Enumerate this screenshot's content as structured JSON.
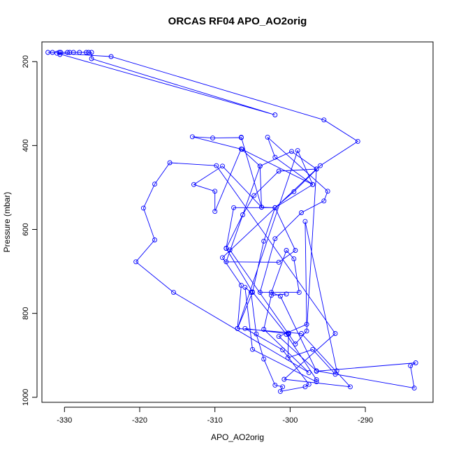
{
  "chart_data": {
    "type": "line",
    "title": "ORCAS RF04 APO_AO2orig",
    "xlabel": "APO_AO2orig",
    "ylabel": "Pressure (mbar)",
    "xlim": [
      -333,
      -281
    ],
    "ylim": [
      1012,
      153
    ],
    "x_ticks": [
      -330,
      -320,
      -310,
      -300,
      -290
    ],
    "y_ticks": [
      200,
      400,
      600,
      800,
      1000
    ],
    "grid": false,
    "marker": "open-circle",
    "colors": {
      "series": "#0000ff",
      "axis": "#000000",
      "background": "#ffffff"
    },
    "series": [
      {
        "points": [
          [
            -332.2,
            178
          ],
          [
            -331.6,
            178
          ],
          [
            -330.7,
            178
          ],
          [
            -330.6,
            183
          ],
          [
            -330.5,
            178
          ],
          [
            -329.6,
            178
          ],
          [
            -329.3,
            178
          ],
          [
            -328.8,
            178
          ],
          [
            -328.0,
            178
          ],
          [
            -327.1,
            178
          ],
          [
            -326.8,
            178
          ],
          [
            -326.4,
            178
          ],
          [
            -326.4,
            193
          ],
          [
            -302.0,
            327
          ],
          [
            -331.0,
            180
          ],
          [
            -323.8,
            188
          ],
          [
            -295.5,
            339
          ],
          [
            -291.0,
            390
          ],
          [
            -296.0,
            448
          ],
          [
            -299.5,
            510
          ],
          [
            -302.0,
            548
          ],
          [
            -303.5,
            628
          ],
          [
            -305.0,
            750
          ],
          [
            -307.0,
            836
          ],
          [
            -306.5,
            733
          ],
          [
            -309.0,
            667
          ],
          [
            -296.5,
            456
          ],
          [
            -301.5,
            461
          ],
          [
            -304.8,
            519
          ],
          [
            -306.3,
            565
          ],
          [
            -308.5,
            645
          ],
          [
            -308.0,
            649
          ],
          [
            -300.3,
            847
          ],
          [
            -299.3,
            873
          ],
          [
            -297.8,
            842
          ],
          [
            -296.5,
            456
          ],
          [
            -299.8,
            414
          ],
          [
            -304.0,
            449
          ],
          [
            -308.5,
            677
          ],
          [
            -301.5,
            678
          ],
          [
            -299.3,
            650
          ],
          [
            -302.0,
            548
          ],
          [
            -303.8,
            547
          ],
          [
            -309.0,
            449
          ],
          [
            -312.8,
            493
          ],
          [
            -310.0,
            509
          ],
          [
            -310.0,
            557
          ],
          [
            -306.5,
            408
          ],
          [
            -304.0,
            449
          ],
          [
            -303.8,
            547
          ],
          [
            -306.5,
            380
          ],
          [
            -306.5,
            381
          ],
          [
            -310.3,
            382
          ],
          [
            -313.0,
            379
          ],
          [
            -306.4,
            409
          ],
          [
            -297.0,
            493
          ],
          [
            -302.0,
            428
          ],
          [
            -303.0,
            380
          ],
          [
            -295.0,
            509
          ],
          [
            -295.5,
            532
          ],
          [
            -298.5,
            560
          ],
          [
            -302.0,
            622
          ],
          [
            -304.0,
            750
          ],
          [
            -298.8,
            750
          ],
          [
            -299.5,
            670
          ],
          [
            -300.5,
            650
          ],
          [
            -302.5,
            750
          ],
          [
            -301.3,
            759
          ],
          [
            -296.5,
            938
          ],
          [
            -283.3,
            918
          ],
          [
            -284.0,
            925
          ],
          [
            -283.5,
            978
          ],
          [
            -296.5,
            937
          ],
          [
            -301.5,
            855
          ],
          [
            -297.8,
            826
          ],
          [
            -298.0,
            581
          ],
          [
            -293.8,
            937
          ],
          [
            -294.0,
            945
          ],
          [
            -297.0,
            886
          ],
          [
            -300.3,
            906
          ],
          [
            -300.2,
            847
          ],
          [
            -300.2,
            849
          ],
          [
            -306.0,
            836
          ],
          [
            -301.0,
            887
          ],
          [
            -297.5,
            969
          ],
          [
            -298.0,
            975
          ],
          [
            -301.3,
            986
          ],
          [
            -301.0,
            975
          ],
          [
            -302.0,
            971
          ],
          [
            -303.5,
            909
          ],
          [
            -304.5,
            849
          ],
          [
            -305.2,
            750
          ],
          [
            -306.0,
            738
          ],
          [
            -305.0,
            886
          ],
          [
            -296.5,
            963
          ],
          [
            -296.5,
            958
          ],
          [
            -300.5,
            850
          ],
          [
            -305.0,
            749
          ],
          [
            -308.5,
            645
          ],
          [
            -307.5,
            548
          ],
          [
            -302.0,
            548
          ],
          [
            -297.0,
            493
          ],
          [
            -299.0,
            412
          ],
          [
            -307.0,
            836
          ],
          [
            -298.5,
            848
          ],
          [
            -292.0,
            975
          ],
          [
            -300.8,
            957
          ],
          [
            -294.0,
            848
          ],
          [
            -309.8,
            448
          ],
          [
            -316.0,
            441
          ],
          [
            -318.0,
            492
          ],
          [
            -319.5,
            549
          ],
          [
            -318.0,
            625
          ],
          [
            -320.5,
            677
          ],
          [
            -315.5,
            750
          ],
          [
            -297.5,
            941
          ],
          [
            -303.5,
            838
          ],
          [
            -302.5,
            757
          ],
          [
            -300.5,
            754
          ]
        ]
      }
    ]
  }
}
